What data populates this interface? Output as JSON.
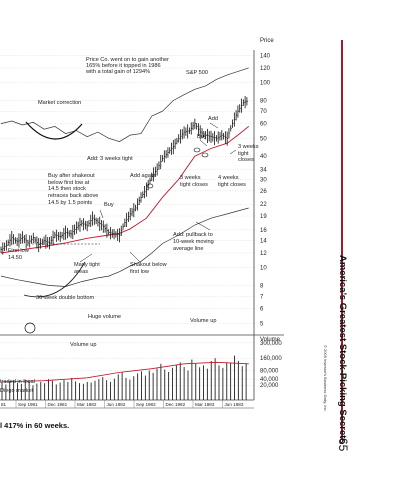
{
  "caption": "l 417% in 60 weeks.",
  "book": {
    "title": "America’s Greatest Stock-Picking Secrets",
    "page_number": "65",
    "copyright": "© 2009 Investor's Business Daily, Inc."
  },
  "colors": {
    "rule": "#a31a2e",
    "moving_average": "#c0182c",
    "grid": "#c8c8c8"
  },
  "chart_data": {
    "type": "line",
    "price_axis_title": "Price",
    "volume_axis_title": "Volume",
    "price_ticks": [
      "140",
      "120",
      "100",
      "80",
      "70",
      "60",
      "50",
      "40",
      "34",
      "30",
      "26",
      "22",
      "19",
      "16",
      "14",
      "12",
      "10",
      "8",
      "7",
      "6",
      "5"
    ],
    "volume_ticks": [
      "300,000",
      "160,000",
      "80,000",
      "40,000",
      "20,000"
    ],
    "x_labels": [
      "81",
      "Sep 1981",
      "Dec 1981",
      "Mar 1982",
      "Jun 1982",
      "Sep 1982",
      "Dec 1982",
      "Mar 1983",
      "Jun 1983"
    ],
    "series": [
      {
        "name": "Price",
        "points": [
          [
            0,
            12.5
          ],
          [
            5,
            13.2
          ],
          [
            10,
            14.5
          ],
          [
            15,
            13.8
          ],
          [
            20,
            14.6
          ],
          [
            25,
            13.6
          ],
          [
            30,
            14.5
          ],
          [
            35,
            13.3
          ],
          [
            40,
            14.0
          ],
          [
            45,
            13.6
          ],
          [
            50,
            15.0
          ],
          [
            55,
            14.7
          ],
          [
            60,
            15.5
          ],
          [
            65,
            15.2
          ],
          [
            70,
            16.5
          ],
          [
            75,
            17.4
          ],
          [
            80,
            16.8
          ],
          [
            85,
            18.5
          ],
          [
            90,
            17.6
          ],
          [
            95,
            16.7
          ],
          [
            100,
            15.5
          ],
          [
            105,
            15.2
          ],
          [
            110,
            15.0
          ],
          [
            115,
            17.5
          ],
          [
            120,
            19.5
          ],
          [
            125,
            21.0
          ],
          [
            130,
            24.0
          ],
          [
            135,
            26.5
          ],
          [
            140,
            31.0
          ],
          [
            145,
            34.0
          ],
          [
            150,
            39.0
          ],
          [
            155,
            42.0
          ],
          [
            160,
            45.0
          ],
          [
            165,
            50.0
          ],
          [
            170,
            54.0
          ],
          [
            175,
            55.0
          ],
          [
            180,
            60.0
          ],
          [
            185,
            54.0
          ],
          [
            190,
            52.0
          ],
          [
            195,
            51.0
          ],
          [
            200,
            50.0
          ],
          [
            205,
            52.0
          ],
          [
            210,
            50.0
          ],
          [
            215,
            60.0
          ],
          [
            220,
            70.0
          ],
          [
            225,
            78.0
          ],
          [
            230,
            80.0
          ]
        ]
      },
      {
        "name": "Moving average",
        "points": [
          [
            0,
            12.0
          ],
          [
            20,
            12.5
          ],
          [
            40,
            13.0
          ],
          [
            60,
            13.6
          ],
          [
            80,
            14.4
          ],
          [
            100,
            15.0
          ],
          [
            110,
            15.3
          ],
          [
            120,
            16.2
          ],
          [
            135,
            18.5
          ],
          [
            150,
            24.0
          ],
          [
            165,
            30.0
          ],
          [
            180,
            40.0
          ],
          [
            195,
            44.0
          ],
          [
            210,
            47.0
          ],
          [
            220,
            52.0
          ],
          [
            230,
            58.0
          ]
        ]
      },
      {
        "name": "S&P 500",
        "points": [
          [
            0,
            60
          ],
          [
            10,
            62
          ],
          [
            20,
            59
          ],
          [
            30,
            61
          ],
          [
            40,
            56
          ],
          [
            50,
            58
          ],
          [
            60,
            53
          ],
          [
            70,
            55
          ],
          [
            80,
            51
          ],
          [
            90,
            54
          ],
          [
            100,
            50
          ],
          [
            110,
            48
          ],
          [
            120,
            52
          ],
          [
            130,
            53
          ],
          [
            140,
            66
          ],
          [
            150,
            70
          ],
          [
            160,
            80
          ],
          [
            170,
            86
          ],
          [
            180,
            92
          ],
          [
            190,
            96
          ],
          [
            200,
            104
          ],
          [
            210,
            110
          ],
          [
            220,
            115
          ],
          [
            230,
            120
          ]
        ]
      },
      {
        "name": "Relative strength",
        "points": [
          [
            0,
            9.0
          ],
          [
            15,
            8.6
          ],
          [
            30,
            8.3
          ],
          [
            45,
            8.0
          ],
          [
            60,
            7.9
          ],
          [
            75,
            8.4
          ],
          [
            90,
            8.8
          ],
          [
            100,
            9.0
          ],
          [
            110,
            9.5
          ],
          [
            120,
            10.2
          ],
          [
            130,
            10.8
          ],
          [
            140,
            12.0
          ],
          [
            150,
            13.5
          ],
          [
            165,
            15.0
          ],
          [
            180,
            17.0
          ],
          [
            195,
            18.5
          ],
          [
            210,
            19.5
          ],
          [
            230,
            21.0
          ]
        ]
      }
    ],
    "volume_series": [
      28000,
      22000,
      30000,
      35000,
      26000,
      24000,
      38000,
      32000,
      20000,
      25000,
      30000,
      26000,
      40000,
      34000,
      22000,
      28000,
      36000,
      30000,
      45000,
      32000,
      26000,
      24000,
      30000,
      28000,
      34000,
      40000,
      48000,
      36000,
      30000,
      42000,
      60000,
      70000,
      45000,
      38000,
      52000,
      65000,
      75000,
      55000,
      80000,
      68000,
      90000,
      120000,
      85000,
      72000,
      95000,
      110000,
      130000,
      100000,
      80000,
      150000,
      120000,
      98000,
      110000,
      90000,
      140000,
      160000,
      110000,
      95000,
      130000,
      125000,
      180000,
      140000,
      105000,
      120000
    ],
    "volume_avg": [
      [
        0,
        30000
      ],
      [
        40,
        34000
      ],
      [
        80,
        45000
      ],
      [
        110,
        70000
      ],
      [
        140,
        90000
      ],
      [
        170,
        120000
      ],
      [
        200,
        130000
      ],
      [
        230,
        120000
      ]
    ],
    "annotations": [
      "Price Co. went on to gain another",
      "165% before it topped in 1986",
      "with a total gain of 1294%",
      "S&P 500",
      "Market correction",
      "Add",
      "Buy",
      "3 weeks",
      "tight",
      "closes",
      "Add: 3 weeks tight",
      "Buy after shakeout",
      "below first low at",
      "14.5 then stock",
      "retraces back above",
      "14.5 by 1.5 points",
      "Add again",
      "3 weeks",
      "tight closes",
      "4 weeks",
      "tight closes",
      "Buy",
      "Add: pullback to",
      "10-week moving",
      "average line",
      "First low",
      "14.50",
      "Many tight",
      "areas",
      "Shakout below",
      "first low",
      "36-week double bottom",
      "Huge volume",
      "Volume up",
      "Volume up",
      "traded in local",
      "Diego market"
    ]
  }
}
